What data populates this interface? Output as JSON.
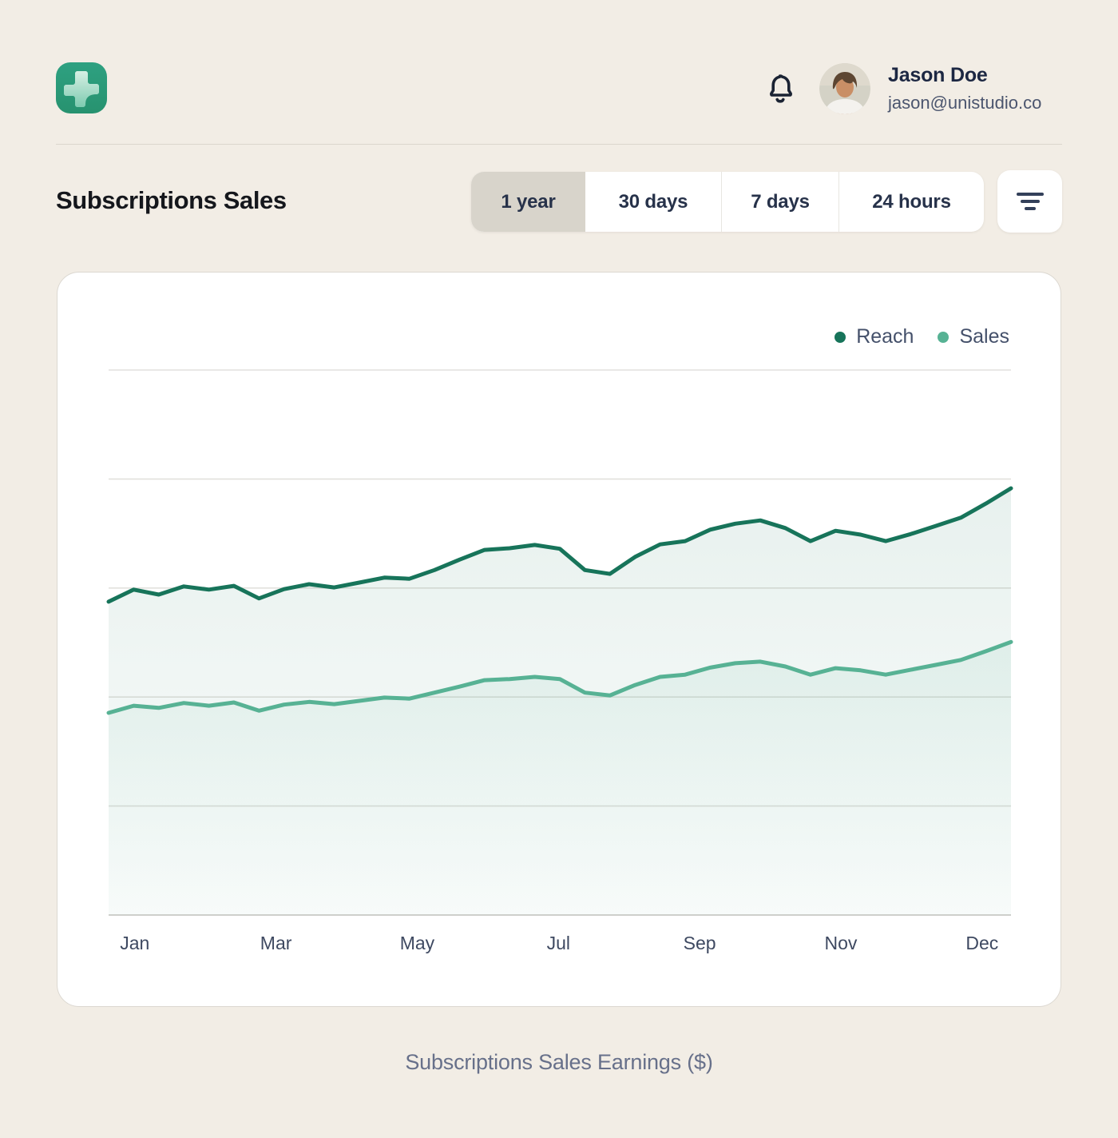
{
  "header": {
    "logo_icon": "plus-icon",
    "notification_icon": "bell-icon",
    "user": {
      "name": "Jason Doe",
      "email": "jason@unistudio.co"
    }
  },
  "toolbar": {
    "title": "Subscriptions Sales",
    "ranges": [
      {
        "label": "1 year",
        "selected": true
      },
      {
        "label": "30 days",
        "selected": false
      },
      {
        "label": "7 days",
        "selected": false
      },
      {
        "label": "24 hours",
        "selected": false
      }
    ],
    "filter_icon": "filter-lines-icon"
  },
  "chart_data": {
    "type": "line",
    "title": "Subscriptions Sales",
    "x_labels": [
      "Jan",
      "Mar",
      "May",
      "Jul",
      "Sep",
      "Nov",
      "Dec"
    ],
    "ylim": [
      0,
      100
    ],
    "gridlines": [
      0,
      20,
      40,
      60,
      80,
      100
    ],
    "grid": "horizontal-only",
    "legend_position": "top-right",
    "axis_note": "y-axis unlabeled; values estimated on 0-100 scale of plot height",
    "series": [
      {
        "name": "Reach",
        "color": "#17745a",
        "fill_from": "rgba(26,117,90,0.10)",
        "fill_to": "rgba(26,117,90,0.02)",
        "values": [
          57.5,
          59.7,
          58.8,
          60.3,
          59.7,
          60.4,
          58.1,
          59.8,
          60.7,
          60.1,
          61.0,
          61.9,
          61.7,
          63.3,
          65.2,
          67.0,
          67.3,
          67.9,
          67.2,
          63.3,
          62.6,
          65.7,
          68.0,
          68.6,
          70.7,
          71.8,
          72.4,
          71.0,
          68.6,
          70.5,
          69.8,
          68.6,
          69.9,
          71.4,
          72.9,
          75.5,
          78.3
        ]
      },
      {
        "name": "Sales",
        "color": "#57b294",
        "fill_from": "rgba(87,178,148,0.10)",
        "fill_to": "rgba(87,178,148,0.02)",
        "values": [
          37.1,
          38.4,
          38.0,
          38.9,
          38.4,
          39.0,
          37.5,
          38.6,
          39.1,
          38.7,
          39.3,
          39.9,
          39.7,
          40.8,
          41.9,
          43.1,
          43.3,
          43.7,
          43.3,
          40.8,
          40.3,
          42.2,
          43.7,
          44.1,
          45.4,
          46.2,
          46.5,
          45.6,
          44.1,
          45.3,
          44.9,
          44.1,
          45.0,
          45.9,
          46.8,
          48.4,
          50.1
        ]
      }
    ]
  },
  "footer": {
    "caption": "Subscriptions Sales Earnings ($)"
  }
}
